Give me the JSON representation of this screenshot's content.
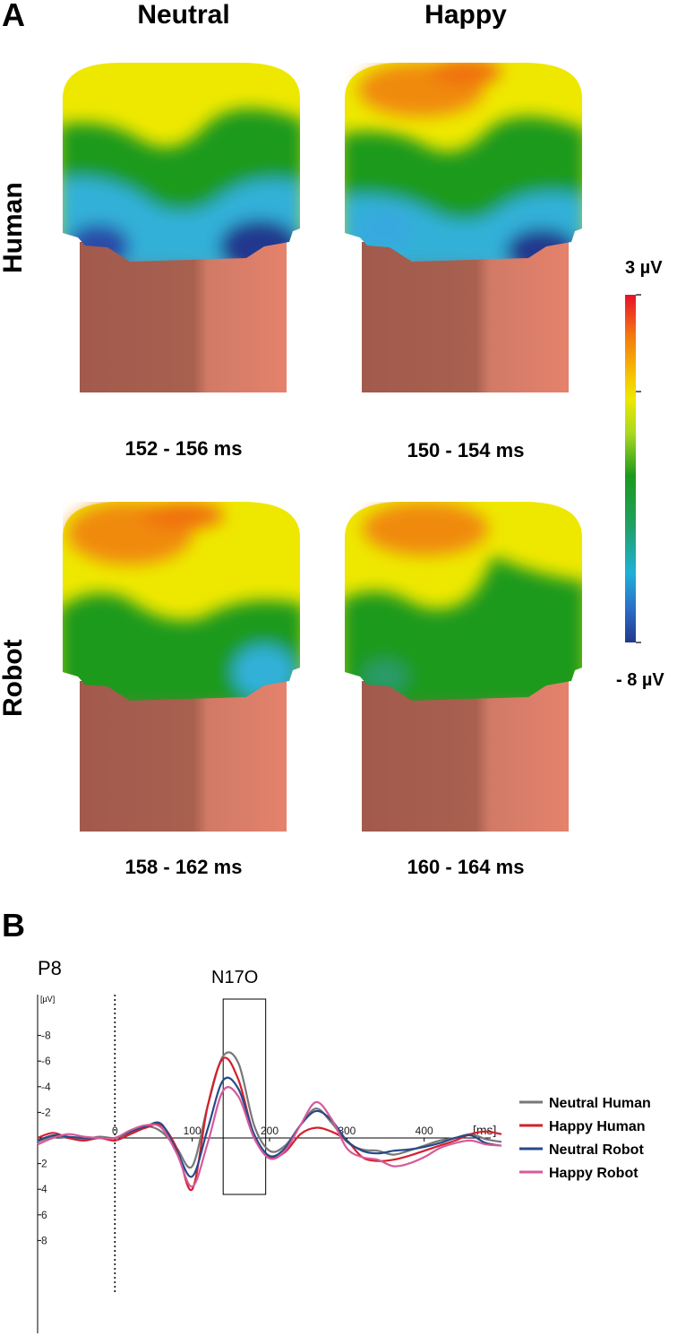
{
  "panel_a": {
    "letter": "A",
    "columns": [
      "Neutral",
      "Happy"
    ],
    "rows": [
      "Human",
      "Robot"
    ],
    "maps": [
      {
        "time": "152 - 156 ms"
      },
      {
        "time": "150 - 154 ms"
      },
      {
        "time": "158 - 162 ms"
      },
      {
        "time": "160 - 164 ms"
      }
    ],
    "colorbar": {
      "max_label": "3 µV",
      "min_label": "- 8 µV",
      "colors": [
        "#e8102a",
        "#f47a10",
        "#f5c800",
        "#eee800",
        "#a8d820",
        "#1c9a1c",
        "#1fa060",
        "#20b0d8",
        "#2a70c8",
        "#24388e"
      ]
    },
    "scalp_colors": {
      "skin": "#c77a68",
      "skin_dark": "#a15a4c"
    }
  },
  "panel_b": {
    "letter": "B",
    "electrode": "P8",
    "component": "N17O",
    "y_unit": "[µV]",
    "x_unit": "[ms]",
    "chart_data": {
      "type": "line",
      "x_ticks": [
        0,
        100,
        200,
        300,
        400
      ],
      "y_ticks": [
        -8,
        -6,
        -4,
        -2,
        2,
        4,
        6,
        8
      ],
      "xlim": [
        -100,
        500
      ],
      "ylim": [
        -10,
        10
      ],
      "y_inverted": true,
      "component_window": [
        140,
        195
      ],
      "series": [
        {
          "name": "Neutral Human",
          "color": "#777777",
          "x": [
            -100,
            -80,
            -60,
            -40,
            -20,
            0,
            20,
            40,
            60,
            80,
            100,
            120,
            140,
            160,
            180,
            200,
            220,
            240,
            260,
            280,
            300,
            320,
            340,
            360,
            380,
            400,
            420,
            440,
            460,
            480,
            500
          ],
          "y": [
            0.3,
            -0.1,
            0,
            0.1,
            -0.1,
            0,
            -0.4,
            -0.9,
            -0.5,
            0.8,
            2.2,
            -2.5,
            -6.4,
            -5.8,
            -1.0,
            1.0,
            0.6,
            -1.0,
            -2.3,
            -1.2,
            0.3,
            0.9,
            1.0,
            1.3,
            1.0,
            0.6,
            0.2,
            0,
            -0.3,
            0.1,
            0.3
          ]
        },
        {
          "name": "Happy Human",
          "color": "#d4202c",
          "x": [
            -100,
            -80,
            -60,
            -40,
            -20,
            0,
            20,
            40,
            60,
            80,
            100,
            120,
            140,
            160,
            180,
            200,
            220,
            240,
            260,
            280,
            300,
            320,
            340,
            360,
            380,
            400,
            420,
            440,
            460,
            480,
            500
          ],
          "y": [
            0,
            -0.4,
            0,
            0.2,
            0,
            0.2,
            -0.3,
            -0.8,
            -1.0,
            0.8,
            4.0,
            -2.5,
            -6.2,
            -4.5,
            -0.2,
            1.5,
            1.1,
            -0.3,
            -0.8,
            -0.5,
            0.2,
            1.5,
            1.8,
            1.7,
            1.4,
            1.0,
            0.6,
            0.2,
            -0.3,
            -0.5,
            -0.3
          ]
        },
        {
          "name": "Neutral Robot",
          "color": "#264a8a",
          "x": [
            -100,
            -80,
            -60,
            -40,
            -20,
            0,
            20,
            40,
            60,
            80,
            100,
            120,
            140,
            160,
            180,
            200,
            220,
            240,
            260,
            280,
            300,
            320,
            340,
            360,
            380,
            400,
            420,
            440,
            460,
            480,
            500
          ],
          "y": [
            0.2,
            -0.2,
            -0.1,
            0,
            0,
            0,
            -0.5,
            -0.9,
            -1.1,
            1.0,
            3.0,
            -0.7,
            -4.5,
            -3.8,
            -0.3,
            1.4,
            0.8,
            -1.0,
            -2.1,
            -1.4,
            0.2,
            1.0,
            1.2,
            1.0,
            0.9,
            0.7,
            0.4,
            0,
            -0.2,
            0.4,
            0.6
          ]
        },
        {
          "name": "Happy Robot",
          "color": "#d65a9a",
          "x": [
            -100,
            -80,
            -60,
            -40,
            -20,
            0,
            20,
            40,
            60,
            80,
            100,
            120,
            140,
            160,
            180,
            200,
            220,
            240,
            260,
            280,
            300,
            320,
            340,
            360,
            380,
            400,
            420,
            440,
            460,
            480,
            500
          ],
          "y": [
            0.5,
            0,
            -0.3,
            -0.1,
            0,
            0,
            -0.6,
            -1.0,
            -0.8,
            1.2,
            3.8,
            0.4,
            -3.7,
            -3.2,
            0,
            1.6,
            1.0,
            -1.0,
            -2.8,
            -1.5,
            0.8,
            1.5,
            1.7,
            2.2,
            2.0,
            1.5,
            0.8,
            0.4,
            0.2,
            0.5,
            0.6
          ]
        }
      ]
    }
  }
}
